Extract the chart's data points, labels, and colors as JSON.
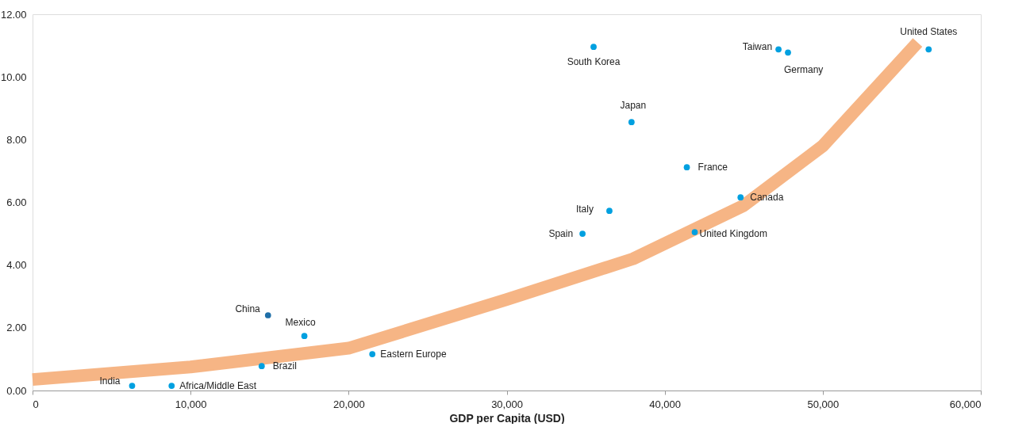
{
  "chart_data": {
    "type": "scatter",
    "xlabel": "GDP per Capita (USD)",
    "xlim": [
      0,
      60000
    ],
    "xticks": [
      {
        "value": 0,
        "label": "0"
      },
      {
        "value": 10000,
        "label": "10,000"
      },
      {
        "value": 20000,
        "label": "20,000"
      },
      {
        "value": 30000,
        "label": "30,000"
      },
      {
        "value": 40000,
        "label": "40,000"
      },
      {
        "value": 50000,
        "label": "50,000"
      },
      {
        "value": 60000,
        "label": "60,000"
      }
    ],
    "ylim": [
      0,
      12
    ],
    "yticks": [
      {
        "value": 0,
        "label": "0.00"
      },
      {
        "value": 2,
        "label": "2.00"
      },
      {
        "value": 4,
        "label": "4.00"
      },
      {
        "value": 6,
        "label": "6.00"
      },
      {
        "value": 8,
        "label": "8.00"
      },
      {
        "value": 10,
        "label": "10.00"
      },
      {
        "value": 12,
        "label": "12.00"
      }
    ],
    "grid": false,
    "marker": "circle",
    "series": [
      {
        "type": "line",
        "marker": "none",
        "color": "#f5ad78",
        "x": [
          0,
          10000,
          20000,
          30000,
          38000,
          45000,
          50000,
          56000
        ],
        "values": [
          0.35,
          0.75,
          1.35,
          2.9,
          4.2,
          5.9,
          7.8,
          11.1
        ]
      },
      {
        "name": "South Korea",
        "color": "#00a0e0",
        "x": [
          35500
        ],
        "values": [
          10.96
        ]
      },
      {
        "name": "Taiwan",
        "color": "#00a0e0",
        "x": [
          47200
        ],
        "values": [
          10.88
        ]
      },
      {
        "name": "Germany",
        "color": "#00a0e0",
        "x": [
          47800
        ],
        "values": [
          10.78
        ]
      },
      {
        "name": "United States",
        "color": "#00a0e0",
        "x": [
          56700
        ],
        "values": [
          10.88
        ]
      },
      {
        "name": "Japan",
        "color": "#00a0e0",
        "x": [
          37900
        ],
        "values": [
          8.56
        ]
      },
      {
        "name": "France",
        "color": "#00a0e0",
        "x": [
          41400
        ],
        "values": [
          7.12
        ]
      },
      {
        "name": "Canada",
        "color": "#00a0e0",
        "x": [
          44800
        ],
        "values": [
          6.16
        ]
      },
      {
        "name": "Italy",
        "color": "#00a0e0",
        "x": [
          36500
        ],
        "values": [
          5.73
        ]
      },
      {
        "name": "Spain",
        "color": "#00a0e0",
        "x": [
          34800
        ],
        "values": [
          5.0
        ]
      },
      {
        "name": "United Kingdom",
        "color": "#00a0e0",
        "x": [
          41900
        ],
        "values": [
          5.05
        ]
      },
      {
        "name": "China",
        "color": "#1f6fa8",
        "x": [
          14900
        ],
        "values": [
          2.4
        ]
      },
      {
        "name": "Mexico",
        "color": "#00a0e0",
        "x": [
          17200
        ],
        "values": [
          1.74
        ]
      },
      {
        "name": "Eastern Europe",
        "color": "#00a0e0",
        "x": [
          21500
        ],
        "values": [
          1.16
        ]
      },
      {
        "name": "Brazil",
        "color": "#00a0e0",
        "x": [
          14500
        ],
        "values": [
          0.78
        ]
      },
      {
        "name": "India",
        "color": "#00a0e0",
        "x": [
          6300
        ],
        "values": [
          0.15
        ]
      },
      {
        "name": "Africa/Middle East",
        "color": "#00a0e0",
        "x": [
          8800
        ],
        "values": [
          0.15
        ]
      }
    ]
  }
}
